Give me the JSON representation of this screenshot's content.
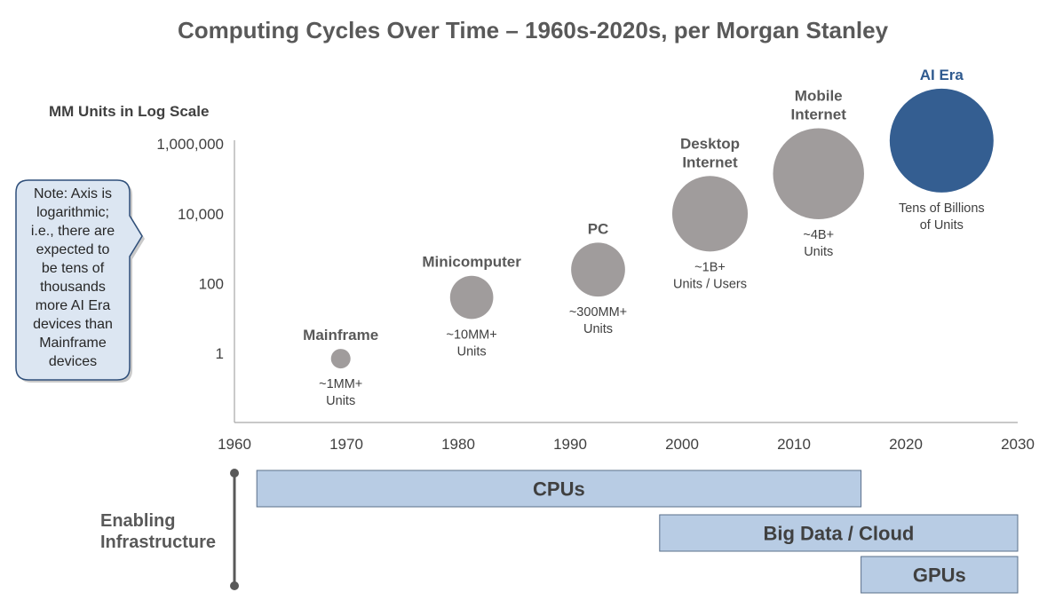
{
  "chart_data": {
    "type": "scatter",
    "title": "Computing Cycles Over Time – 1960s-2020s, per Morgan Stanley",
    "ylabel": "MM Units in Log Scale",
    "y_scale": "log",
    "y_ticks": [
      "1",
      "100",
      "10,000",
      "1,000,000"
    ],
    "y_tick_values": [
      1,
      100,
      10000,
      1000000
    ],
    "x_ticks": [
      "1960",
      "1970",
      "1980",
      "1990",
      "2000",
      "2010",
      "2020",
      "2030"
    ],
    "x_tick_values": [
      1960,
      1970,
      1980,
      1990,
      2000,
      2010,
      2020,
      2030
    ],
    "xlim": [
      1960,
      2030
    ],
    "ylim": [
      0.01,
      1000000
    ],
    "grid": false,
    "points": [
      {
        "label": [
          "Mainframe"
        ],
        "units": [
          "~1MM+",
          "Units"
        ],
        "x": 1969.5,
        "y": 0.7,
        "color": "#a09c9c"
      },
      {
        "label": [
          "Minicomputer"
        ],
        "units": [
          "~10MM+",
          "Units"
        ],
        "x": 1981.2,
        "y": 40,
        "color": "#a09c9c"
      },
      {
        "label": [
          "PC"
        ],
        "units": [
          "~300MM+",
          "Units"
        ],
        "x": 1992.5,
        "y": 250,
        "color": "#a09c9c"
      },
      {
        "label": [
          "Desktop",
          "Internet"
        ],
        "units": [
          "~1B+",
          "Units / Users"
        ],
        "x": 2002.5,
        "y": 10000,
        "color": "#a09c9c"
      },
      {
        "label": [
          "Mobile",
          "Internet"
        ],
        "units": [
          "~4B+",
          "Units"
        ],
        "x": 2012.2,
        "y": 140000,
        "color": "#a09c9c"
      },
      {
        "label": [
          "AI Era"
        ],
        "units": [
          "Tens of Billions",
          "of Units"
        ],
        "x": 2023.2,
        "y": 1250000,
        "color": "#345e91"
      }
    ],
    "infrastructure": {
      "label": [
        "Enabling",
        "Infrastructure"
      ],
      "bars": [
        {
          "label": "CPUs",
          "start": 1962,
          "end": 2016
        },
        {
          "label": "Big Data / Cloud",
          "start": 1998,
          "end": 2030
        },
        {
          "label": "GPUs",
          "start": 2016,
          "end": 2030
        }
      ]
    },
    "note": [
      "Note: Axis is",
      "logarithmic;",
      "i.e., there are",
      "expected to",
      "be tens of",
      "thousands",
      "more AI Era",
      "devices than",
      "Mainframe",
      "devices"
    ],
    "colors": {
      "bubble_gray": "#a09c9c",
      "ai_blue": "#345e91",
      "bar_fill": "#b8cce4",
      "bar_stroke": "#5a6f8a",
      "note_fill": "#dce6f2"
    }
  }
}
